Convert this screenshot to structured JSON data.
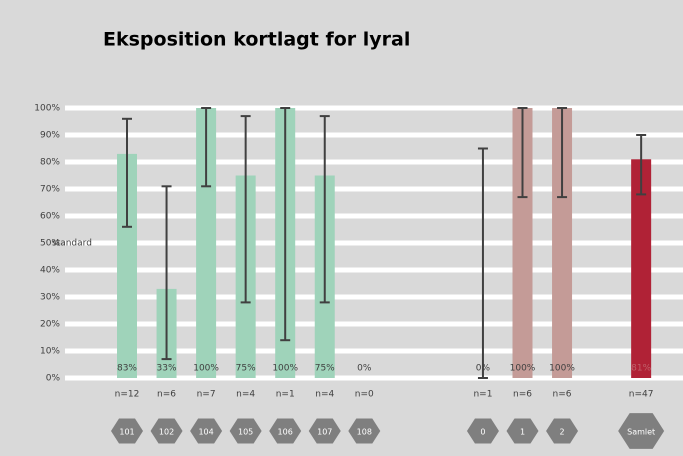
{
  "chart_data": {
    "type": "bar",
    "title": "Eksposition kortlagt for lyral",
    "annotation": "standard",
    "categories": [
      "101",
      "102",
      "104",
      "105",
      "106",
      "107",
      "108",
      "0",
      "1",
      "2",
      "Samlet"
    ],
    "values": [
      83,
      33,
      100,
      75,
      100,
      75,
      0,
      0,
      100,
      100,
      81
    ],
    "value_labels": [
      "83%",
      "33%",
      "100%",
      "75%",
      "100%",
      "75%",
      "0%",
      "0%",
      "100%",
      "100%",
      "81%"
    ],
    "error_low": [
      56,
      7,
      71,
      28,
      14,
      28,
      null,
      0,
      67,
      67,
      68
    ],
    "error_high": [
      96,
      71,
      100,
      97,
      100,
      97,
      null,
      85,
      100,
      100,
      90
    ],
    "n_labels": [
      "n=12",
      "n=6",
      "n=7",
      "n=4",
      "n=1",
      "n=4",
      "n=0",
      "n=1",
      "n=6",
      "n=6",
      "n=47"
    ],
    "colors": [
      "#9fd3ba",
      "#9fd3ba",
      "#9fd3ba",
      "#9fd3ba",
      "#9fd3ba",
      "#9fd3ba",
      "#9fd3ba",
      "#c49b97",
      "#c49b97",
      "#c49b97",
      "#b02236"
    ],
    "ylim": [
      0,
      100
    ],
    "yticks": [
      {
        "value": 0,
        "label": "0%"
      },
      {
        "value": 10,
        "label": "10%"
      },
      {
        "value": 20,
        "label": "20%"
      },
      {
        "value": 30,
        "label": "30%"
      },
      {
        "value": 40,
        "label": "40%"
      },
      {
        "value": 50,
        "label": "50%"
      },
      {
        "value": 60,
        "label": "60%"
      },
      {
        "value": 70,
        "label": "70%"
      },
      {
        "value": 80,
        "label": "80%"
      },
      {
        "value": 90,
        "label": "90%"
      },
      {
        "value": 100,
        "label": "100%"
      }
    ],
    "grid": true
  }
}
